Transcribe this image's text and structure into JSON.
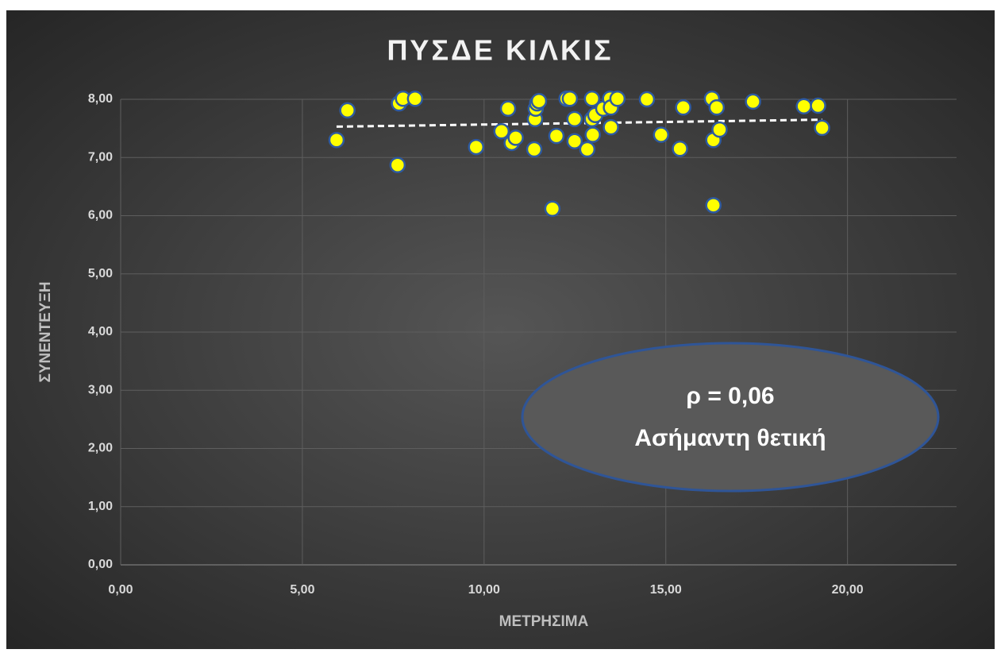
{
  "chart_data": {
    "type": "scatter",
    "title": "ΠΥΣΔΕ ΚΙΛΚΙΣ",
    "x_label": "ΜΕΤΡΗΣΙΜΑ",
    "y_label": "ΣΥΝΕΝΤΕΥΞΗ",
    "annotation": [
      "ρ = 0,06",
      "Ασήμαντη θετική"
    ],
    "x": [
      5.94,
      6.24,
      7.62,
      7.66,
      7.77,
      8.1,
      9.78,
      10.48,
      10.66,
      10.76,
      10.87,
      11.38,
      11.4,
      11.42,
      11.46,
      11.51,
      11.88,
      11.99,
      12.27,
      12.36,
      12.49,
      12.49,
      12.84,
      12.97,
      12.97,
      12.99,
      13.06,
      13.28,
      13.47,
      13.49,
      13.49,
      13.67,
      14.48,
      14.87,
      15.39,
      15.48,
      16.27,
      16.31,
      16.31,
      16.4,
      16.48,
      17.4,
      18.8,
      19.19,
      19.3
    ],
    "values": [
      7.3,
      7.81,
      6.87,
      7.93,
      8.01,
      8.01,
      7.18,
      7.45,
      7.84,
      7.25,
      7.34,
      7.14,
      7.66,
      7.84,
      7.93,
      7.97,
      6.12,
      7.37,
      8.01,
      8.01,
      7.66,
      7.28,
      7.14,
      8.01,
      7.66,
      7.39,
      7.73,
      7.84,
      8.01,
      7.86,
      7.52,
      8.01,
      8.0,
      7.39,
      7.15,
      7.86,
      8.01,
      6.18,
      7.3,
      7.86,
      7.48,
      7.96,
      7.88,
      7.89,
      7.51
    ],
    "color": "#ffff00",
    "trendline": {
      "x": [
        5.94,
        19.3
      ],
      "y": [
        7.53,
        7.65
      ],
      "color": "#ffffff"
    },
    "xlim": [
      0,
      23
    ],
    "xticks": [
      {
        "value": 0,
        "label": "0,00"
      },
      {
        "value": 5,
        "label": "5,00"
      },
      {
        "value": 10,
        "label": "10,00"
      },
      {
        "value": 15,
        "label": "15,00"
      },
      {
        "value": 20,
        "label": "20,00"
      }
    ],
    "ylim": [
      0,
      8
    ],
    "yticks": [
      {
        "value": 0,
        "label": "0,00"
      },
      {
        "value": 1,
        "label": "1,00"
      },
      {
        "value": 2,
        "label": "2,00"
      },
      {
        "value": 3,
        "label": "3,00"
      },
      {
        "value": 4,
        "label": "4,00"
      },
      {
        "value": 5,
        "label": "5,00"
      },
      {
        "value": 6,
        "label": "6,00"
      },
      {
        "value": 7,
        "label": "7,00"
      },
      {
        "value": 8,
        "label": "8,00"
      }
    ],
    "grid": true
  }
}
